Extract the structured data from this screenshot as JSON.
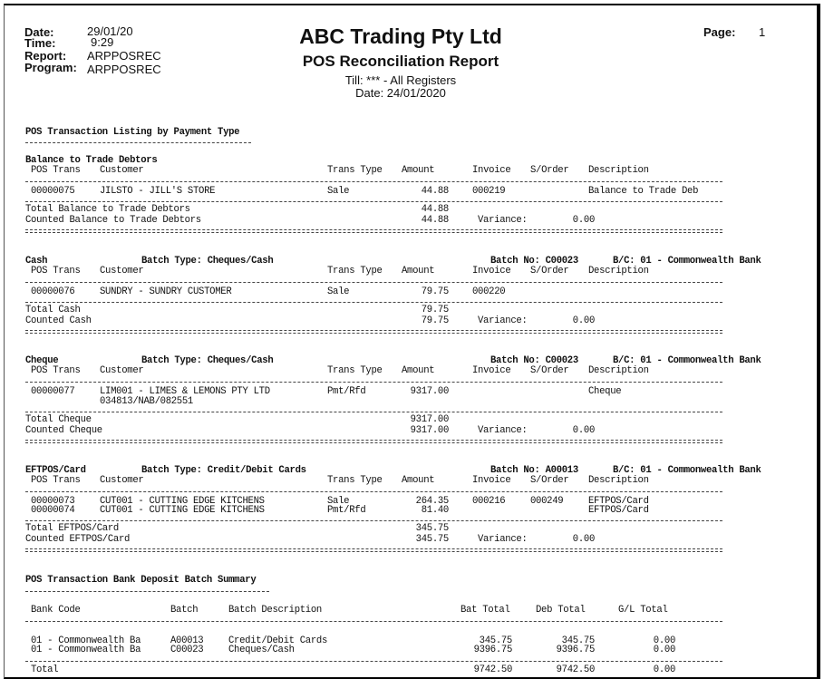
{
  "header": {
    "date_label": "Date:",
    "date": "29/01/20",
    "time_label": "Time:",
    "time": "9:29",
    "report_label": "Report:",
    "report": "ARPPOSREC",
    "program_label": "Program:",
    "program": "ARPPOSREC",
    "company": "ABC Trading Pty Ltd",
    "title": "POS Reconciliation Report",
    "till": "Till: *** - All Registers",
    "report_date": "Date: 24/01/2020",
    "page_label": "Page:",
    "page": "1"
  },
  "listing_title": "POS Transaction Listing by Payment Type",
  "columns": {
    "pos_trans": "POS Trans",
    "customer": "Customer",
    "trans_type": "Trans Type",
    "amount": "Amount",
    "invoice": "Invoice",
    "sorder": "S/Order",
    "description": "Description"
  },
  "variance_label": "Variance:",
  "sections": [
    {
      "name": "Balance to Trade Debtors",
      "batch_type": "",
      "batch_no": "",
      "bc": "",
      "rows": [
        {
          "pos": "00000075",
          "customer": "JILSTO - JILL'S STORE",
          "customer2": "",
          "type": "Sale",
          "amount": "44.88",
          "invoice": "000219",
          "sorder": "",
          "desc": "Balance to Trade Deb"
        }
      ],
      "total_label": "Total Balance to Trade Debtors",
      "total": "44.88",
      "counted_label": "Counted Balance to Trade Debtors",
      "counted": "44.88",
      "variance": "0.00"
    },
    {
      "name": "Cash",
      "batch_type": "Batch Type: Cheques/Cash",
      "batch_no": "Batch No: C00023",
      "bc": "B/C: 01 - Commonwealth Bank",
      "rows": [
        {
          "pos": "00000076",
          "customer": "SUNDRY - SUNDRY CUSTOMER",
          "customer2": "",
          "type": "Sale",
          "amount": "79.75",
          "invoice": "000220",
          "sorder": "",
          "desc": ""
        }
      ],
      "total_label": "Total Cash",
      "total": "79.75",
      "counted_label": "Counted Cash",
      "counted": "79.75",
      "variance": "0.00"
    },
    {
      "name": "Cheque",
      "batch_type": "Batch Type: Cheques/Cash",
      "batch_no": "Batch No: C00023",
      "bc": "B/C: 01 - Commonwealth Bank",
      "rows": [
        {
          "pos": "00000077",
          "customer": "LIM001 - LIMES & LEMONS PTY LTD",
          "customer2": "034813/NAB/082551",
          "type": "Pmt/Rfd",
          "amount": "9317.00",
          "invoice": "",
          "sorder": "",
          "desc": "Cheque"
        }
      ],
      "total_label": "Total Cheque",
      "total": "9317.00",
      "counted_label": "Counted Cheque",
      "counted": "9317.00",
      "variance": "0.00"
    },
    {
      "name": "EFTPOS/Card",
      "batch_type": "Batch Type: Credit/Debit Cards",
      "batch_no": "Batch No: A00013",
      "bc": "B/C: 01 - Commonwealth Bank",
      "rows": [
        {
          "pos": "00000073",
          "customer": "CUT001 - CUTTING EDGE KITCHENS",
          "customer2": "",
          "type": "Sale",
          "amount": "264.35",
          "invoice": "000216",
          "sorder": "000249",
          "desc": "EFTPOS/Card"
        },
        {
          "pos": "00000074",
          "customer": "CUT001 - CUTTING EDGE KITCHENS",
          "customer2": "",
          "type": "Pmt/Rfd",
          "amount": "81.40",
          "invoice": "",
          "sorder": "",
          "desc": "EFTPOS/Card"
        }
      ],
      "total_label": "Total EFTPOS/Card",
      "total": "345.75",
      "counted_label": "Counted EFTPOS/Card",
      "counted": "345.75",
      "variance": "0.00"
    }
  ],
  "summary": {
    "title": "POS Transaction Bank Deposit Batch Summary",
    "columns": {
      "bank_code": "Bank Code",
      "batch": "Batch",
      "batch_desc": "Batch Description",
      "bat_total": "Bat Total",
      "deb_total": "Deb Total",
      "gl_total": "G/L Total"
    },
    "rows": [
      {
        "bank_code": "01 - Commonwealth Ba",
        "batch": "A00013",
        "batch_desc": "Credit/Debit Cards",
        "bat_total": "345.75",
        "deb_total": "345.75",
        "gl_total": "0.00"
      },
      {
        "bank_code": "01 - Commonwealth Ba",
        "batch": "C00023",
        "batch_desc": "Cheques/Cash",
        "bat_total": "9396.75",
        "deb_total": "9396.75",
        "gl_total": "0.00"
      }
    ],
    "total_label": "Total",
    "bat_total": "9742.50",
    "deb_total": "9742.50",
    "gl_total": "0.00"
  }
}
